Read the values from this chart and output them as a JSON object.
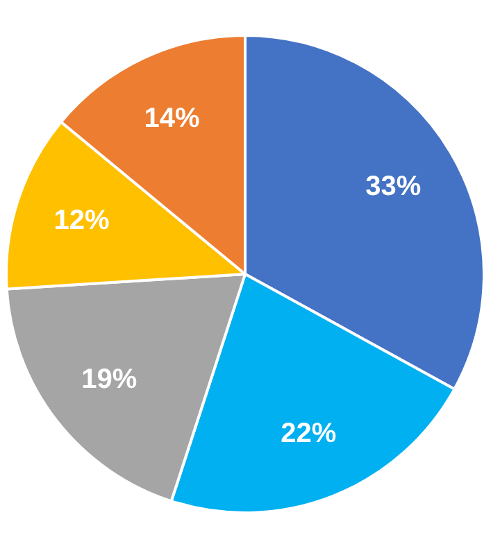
{
  "chart_data": {
    "type": "pie",
    "categories": [
      null,
      null,
      null,
      null,
      null
    ],
    "values": [
      33,
      22,
      19,
      12,
      14
    ],
    "value_labels": [
      "33%",
      "22%",
      "19%",
      "12%",
      "14%"
    ],
    "colors": [
      "#4472c4",
      "#00b0f0",
      "#a5a5a5",
      "#ffc000",
      "#ed7d31"
    ]
  }
}
